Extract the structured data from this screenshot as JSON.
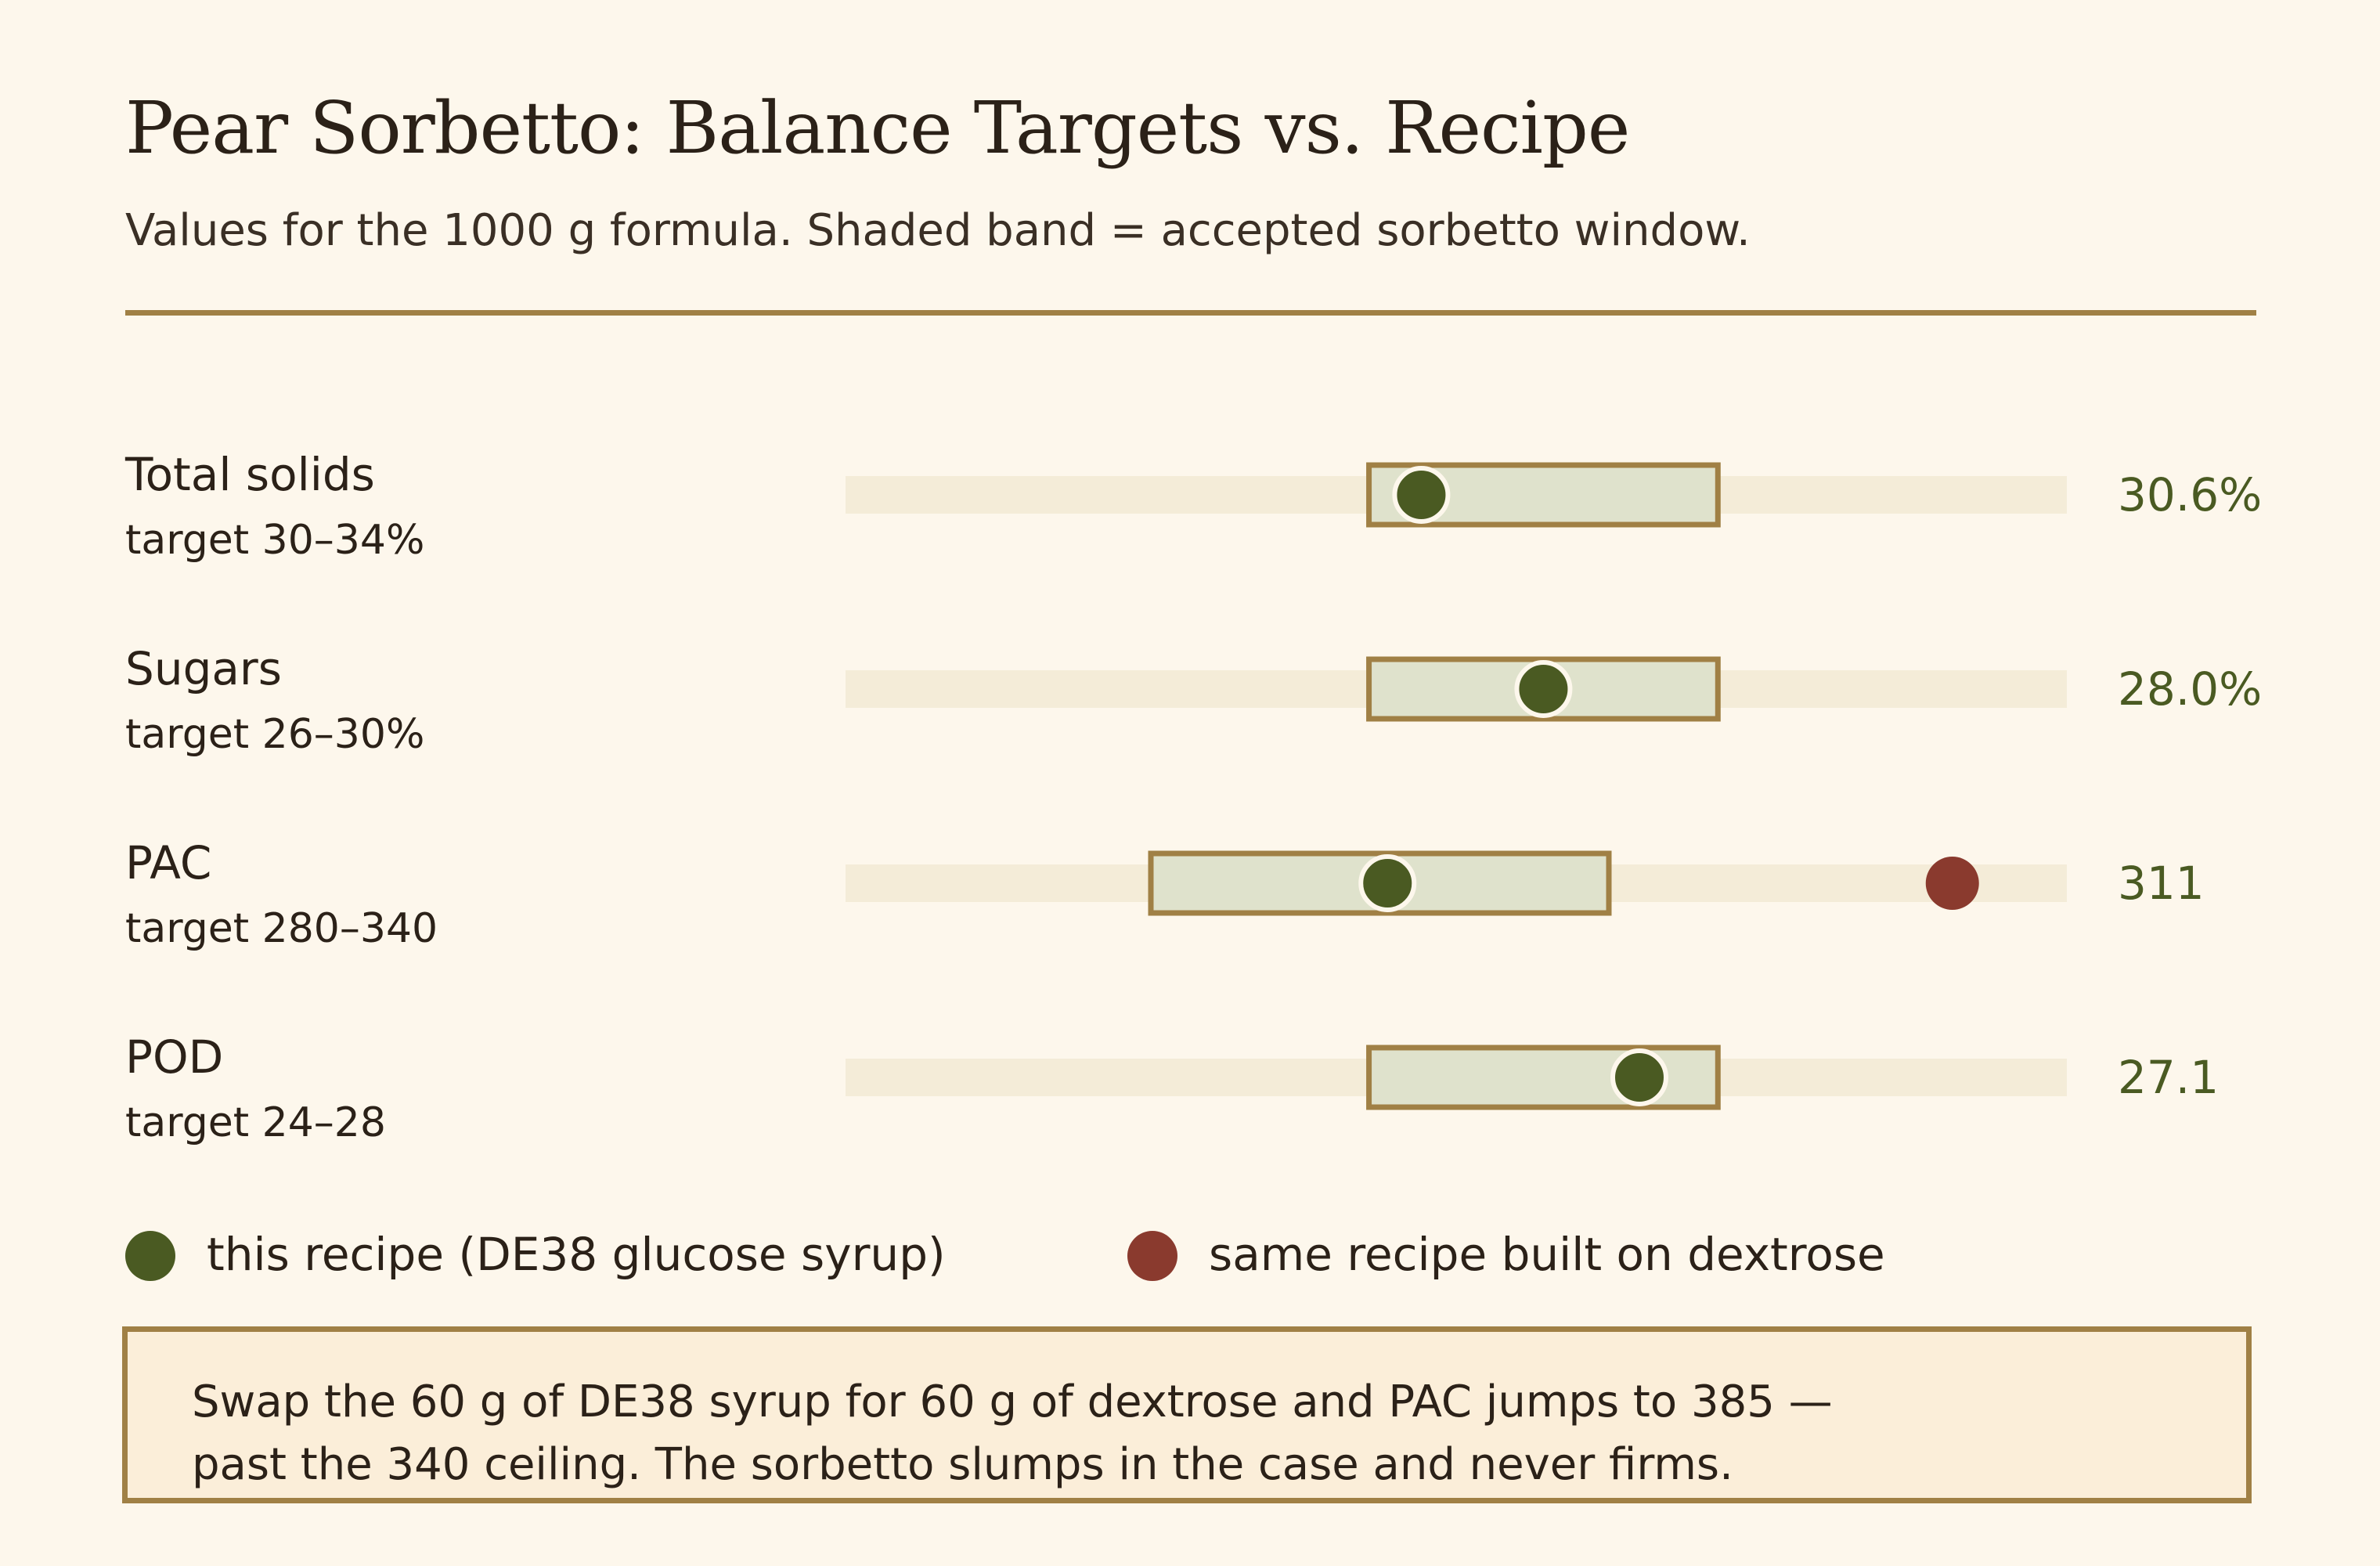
{
  "title": "Pear Sorbetto: Balance Targets vs. Recipe",
  "subtitle": "Values for the 1000 g formula. Shaded band = accepted sorbetto window.",
  "colors": {
    "background": "#fdf7ec",
    "accent": "#a08045",
    "recipe": "#4a5a22",
    "dextrose": "#8a3a2e",
    "band_fill": "#dfe2cc",
    "track": "#f4ecd8"
  },
  "chart_data": {
    "type": "bullet",
    "rows": [
      {
        "label": "Total solids",
        "target_text": "target 30–34%",
        "target": [
          30,
          34
        ],
        "value": 30.6,
        "value_text": "30.6%",
        "axis": [
          24,
          38
        ]
      },
      {
        "label": "Sugars",
        "target_text": "target 26–30%",
        "target": [
          26,
          30
        ],
        "value": 28.0,
        "value_text": "28.0%",
        "axis": [
          20,
          34
        ]
      },
      {
        "label": "PAC",
        "target_text": "target 280–340",
        "target": [
          280,
          340
        ],
        "value": 311,
        "value_text": "311",
        "alt_value": 385,
        "axis": [
          240,
          400
        ]
      },
      {
        "label": "POD",
        "target_text": "target 24–28",
        "target": [
          24,
          28
        ],
        "value": 27.1,
        "value_text": "27.1",
        "axis": [
          18,
          32
        ]
      }
    ],
    "legend": [
      {
        "label": "this recipe (DE38 glucose syrup)",
        "color": "#4a5a22"
      },
      {
        "label": "same recipe built on dextrose",
        "color": "#8a3a2e"
      }
    ]
  },
  "note": {
    "line1": "Swap the 60 g of DE38 syrup for 60 g of dextrose and PAC jumps to 385 —",
    "line2": "past the 340 ceiling. The sorbetto slumps in the case and never firms."
  }
}
